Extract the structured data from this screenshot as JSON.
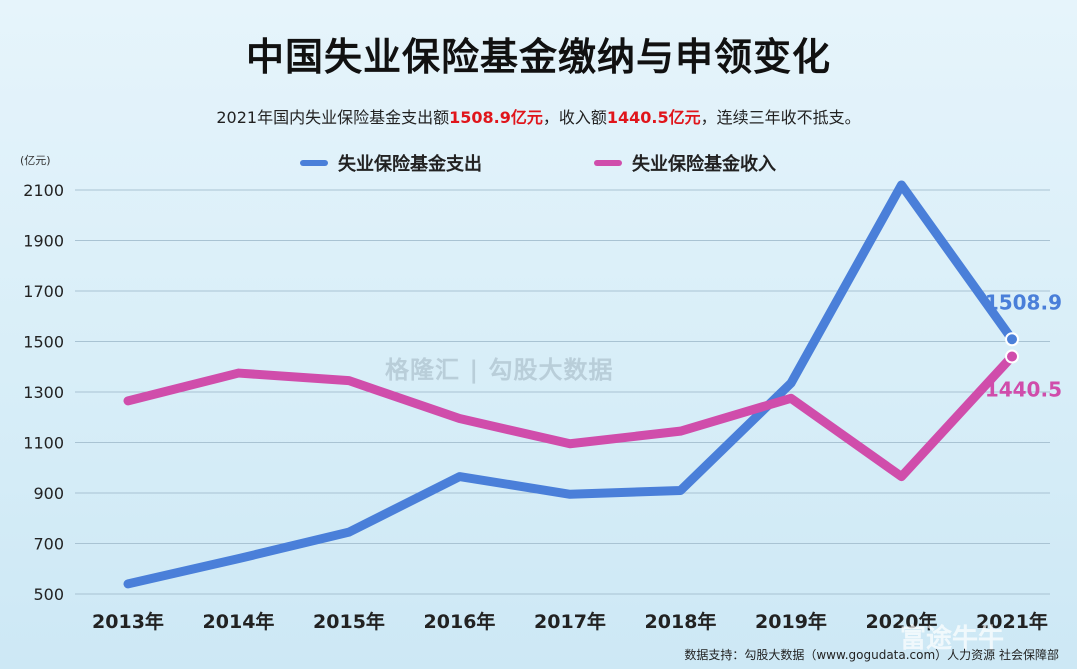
{
  "title": "中国失业保险基金缴纳与申领变化",
  "subtitle": {
    "part1": "2021年国内失业保险基金支出额",
    "hl1": "1508.9亿元",
    "part2": "，收入额",
    "hl2": "1440.5亿元",
    "part3": "，连续三年收不抵支。"
  },
  "unit_label": "(亿元)",
  "footer": "数据支持：勾股大数据（www.gogudata.com）人力资源 社会保障部",
  "watermark": "格隆汇 | 勾股大数据",
  "watermark2": "富途牛牛",
  "colors": {
    "expenditure": "#4a7fd9",
    "income": "#d04dab"
  },
  "chart_data": {
    "type": "line",
    "categories": [
      "2013年",
      "2014年",
      "2015年",
      "2016年",
      "2017年",
      "2018年",
      "2019年",
      "2020年",
      "2021年"
    ],
    "ylim": [
      500,
      2100
    ],
    "yticks": [
      500,
      700,
      900,
      1100,
      1300,
      1500,
      1700,
      1900,
      2100
    ],
    "grid": true,
    "legend_position": "top",
    "series": [
      {
        "name": "失业保险基金支出",
        "values": [
          540,
          640,
          745,
          965,
          895,
          910,
          1335,
          2120,
          1508.9
        ],
        "end_label": "1508.9"
      },
      {
        "name": "失业保险基金收入",
        "values": [
          1265,
          1375,
          1345,
          1195,
          1095,
          1145,
          1275,
          965,
          1440.5
        ],
        "end_label": "1440.5"
      }
    ]
  }
}
